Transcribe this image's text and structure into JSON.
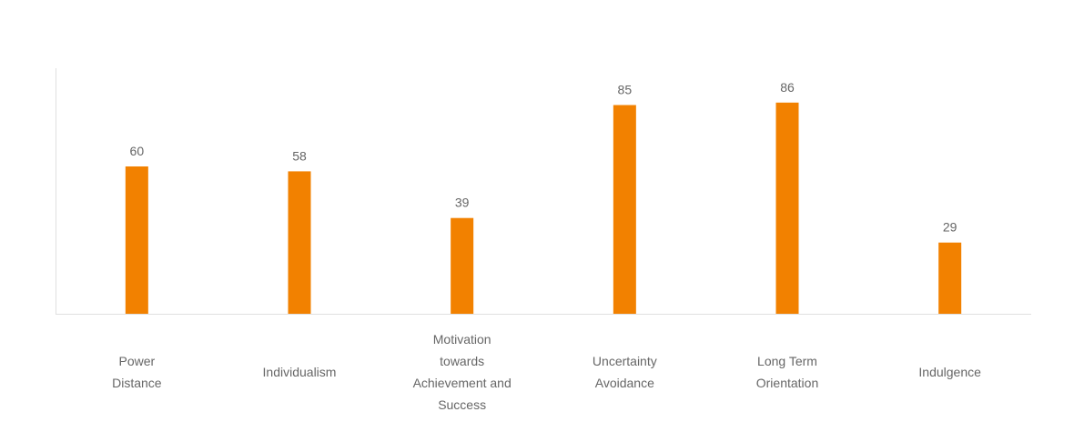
{
  "chart_data": {
    "type": "bar",
    "title": "",
    "xlabel": "",
    "ylabel": "",
    "categories": [
      "Power\nDistance",
      "Individualism",
      "Motivation\ntowards\nAchievement and\nSuccess",
      "Uncertainty\nAvoidance",
      "Long Term\nOrientation",
      "Indulgence"
    ],
    "values": [
      60,
      58,
      39,
      85,
      86,
      29
    ],
    "data_labels": [
      "60",
      "58",
      "39",
      "85",
      "86",
      "29"
    ],
    "ylim": [
      0,
      100
    ],
    "grid": false,
    "legend": "none",
    "colors": {
      "bar": "#F28100",
      "text": "#666666",
      "axis": "#E0E0E0"
    }
  }
}
